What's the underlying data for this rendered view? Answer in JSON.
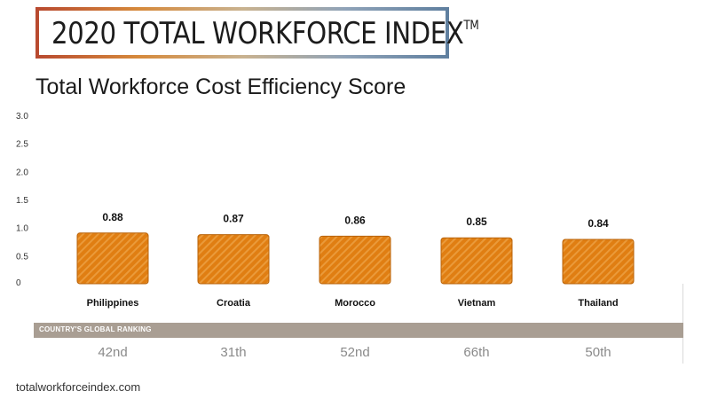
{
  "banner": {
    "title": "2020 TOTAL WORKFORCE INDEX",
    "trademark": "TM"
  },
  "colors": {
    "bar_fill": "#e07e12",
    "bar_stripe": "#ea9a3a",
    "bar_edge": "#b8630a",
    "ranking_band": "#a99e93"
  },
  "chart_data": {
    "type": "bar",
    "title": "Total Workforce Cost Efficiency Score",
    "categories": [
      "Philippines",
      "Croatia",
      "Morocco",
      "Vietnam",
      "Thailand"
    ],
    "values": [
      0.88,
      0.87,
      0.86,
      0.85,
      0.84
    ],
    "data_labels": [
      "0.88",
      "0.87",
      "0.86",
      "0.85",
      "0.84"
    ],
    "y_ticks": [
      "0",
      "0.5",
      "1.0",
      "1.5",
      "2.0",
      "2.5",
      "3.0"
    ],
    "ylim": [
      0,
      3.0
    ],
    "grid": false,
    "xlabel": "",
    "ylabel": ""
  },
  "ranking": {
    "label": "COUNTRY'S GLOBAL RANKING",
    "values": [
      "42nd",
      "31th",
      "52nd",
      "66th",
      "50th"
    ]
  },
  "footer": {
    "source": "totalworkforceindex.com"
  }
}
